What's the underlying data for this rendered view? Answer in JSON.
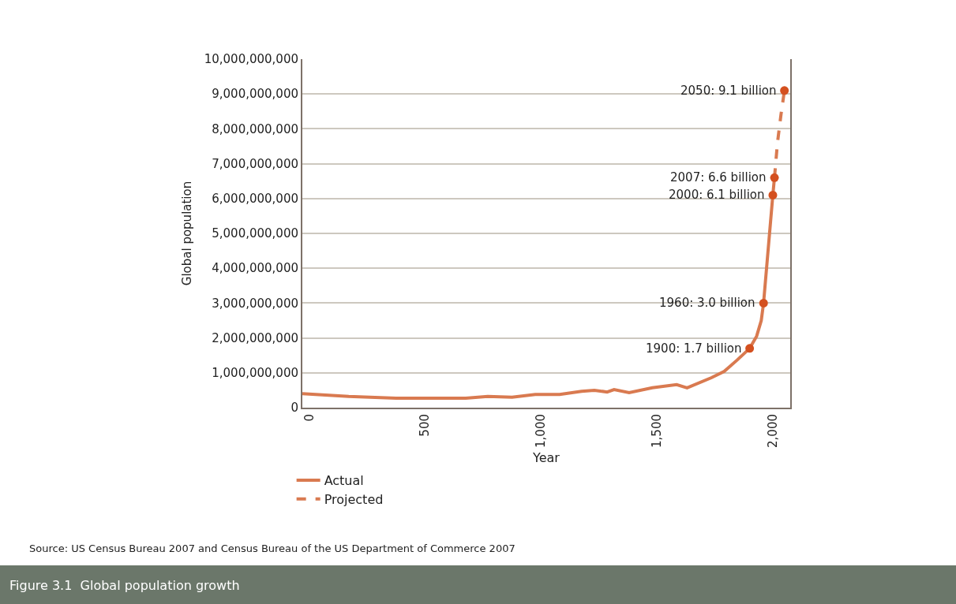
{
  "chart_data": {
    "type": "line",
    "title": "Figure 3.1  Global population growth",
    "xlabel": "Year",
    "ylabel": "Global population",
    "xlim": [
      -30,
      2075
    ],
    "xticks": [
      0,
      500,
      {
        "value": 1000,
        "label": "1,000"
      },
      {
        "value": 1500,
        "label": "1,500"
      },
      {
        "value": 2000,
        "label": "2,000"
      }
    ],
    "ylim": [
      0,
      10000000000
    ],
    "yticks": [
      0,
      {
        "value": 1000000000,
        "label": "1,000,000,000"
      },
      {
        "value": 2000000000,
        "label": "2,000,000,000"
      },
      {
        "value": 3000000000,
        "label": "3,000,000,000"
      },
      {
        "value": 4000000000,
        "label": "4,000,000,000"
      },
      {
        "value": 5000000000,
        "label": "5,000,000,000"
      },
      {
        "value": 6000000000,
        "label": "6,000,000,000"
      },
      {
        "value": 7000000000,
        "label": "7,000,000,000"
      },
      {
        "value": 8000000000,
        "label": "8,000,000,000"
      },
      {
        "value": 9000000000,
        "label": "9,000,000,000"
      },
      {
        "value": 10000000000,
        "label": "10,000,000,000"
      }
    ],
    "grid": "y",
    "legend": "bottom left",
    "marker": "none",
    "series": [
      {
        "name": "Actual",
        "color": "#d97a50",
        "line_style": "solid",
        "x": [
          -30,
          170,
          375,
          675,
          770,
          875,
          975,
          1080,
          1175,
          1230,
          1285,
          1315,
          1380,
          1480,
          1585,
          1630,
          1735,
          1790,
          1845,
          1900,
          1930,
          1950,
          1960,
          2000,
          2007
        ],
        "values": [
          400000000,
          320000000,
          270000000,
          270000000,
          320000000,
          300000000,
          380000000,
          380000000,
          470000000,
          500000000,
          450000000,
          520000000,
          430000000,
          570000000,
          660000000,
          570000000,
          860000000,
          1040000000,
          1360000000,
          1700000000,
          2050000000,
          2500000000,
          3000000000,
          6100000000,
          6600000000
        ]
      },
      {
        "name": "Projected",
        "color": "#d97a50",
        "line_style": "dashed",
        "x": [
          2007,
          2020,
          2035,
          2050
        ],
        "values": [
          6600000000,
          7600000000,
          8400000000,
          9100000000
        ]
      },
      {
        "type": "scatter",
        "color": "#d4501f",
        "marker": "circle",
        "x": [
          1900,
          1960,
          2000,
          2007,
          2050
        ],
        "values": [
          1700000000,
          3000000000,
          6100000000,
          6600000000,
          9100000000
        ]
      }
    ],
    "annotations": [
      {
        "text": "1900: 1.7 billion",
        "x": 1900,
        "y": 1700000000
      },
      {
        "text": "1960: 3.0 billion",
        "x": 1960,
        "y": 3000000000
      },
      {
        "text": "2000: 6.1 billion",
        "x": 2000,
        "y": 6100000000
      },
      {
        "text": "2007: 6.6 billion",
        "x": 2007,
        "y": 6600000000
      },
      {
        "text": "2050: 9.1 billion",
        "x": 2050,
        "y": 9100000000
      },
      "Source: US Census Bureau 2007 and Census Bureau of the US Department of Commerce 2007"
    ]
  }
}
